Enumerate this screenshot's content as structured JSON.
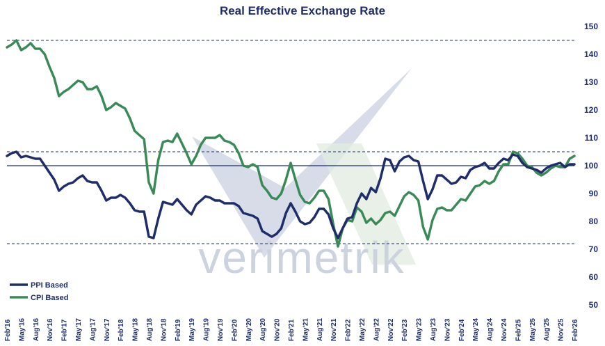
{
  "chart_data": {
    "type": "line",
    "title": "Real Effective Exchange Rate",
    "watermark": "verimetrik",
    "ylim": [
      50,
      150
    ],
    "yticks": [
      50,
      60,
      70,
      80,
      90,
      100,
      110,
      120,
      130,
      140,
      150
    ],
    "reference_lines": [
      {
        "value": 145,
        "style": "dashed"
      },
      {
        "value": 105,
        "style": "dashed"
      },
      {
        "value": 100,
        "style": "solid"
      },
      {
        "value": 72,
        "style": "dashed"
      }
    ],
    "xtick_labels": [
      "Feb'16",
      "May'16",
      "Aug'16",
      "Nov'16",
      "Feb'17",
      "May'17",
      "Aug'17",
      "Nov'17",
      "Feb'18",
      "May'18",
      "Aug'18",
      "Nov'18",
      "Feb'19",
      "May'19",
      "Aug'19",
      "Nov'19",
      "Feb'20",
      "May'20",
      "Aug'20",
      "Nov'20",
      "Feb'21",
      "May'21",
      "Aug'21",
      "Nov'21",
      "Feb'22",
      "May'22",
      "Aug'22",
      "Nov'22",
      "Feb'23",
      "May'23",
      "Aug'23",
      "Nov'23",
      "Feb'24",
      "May'24",
      "Aug'24",
      "Nov'24",
      "Feb'25",
      "May'25",
      "Aug'25",
      "Nov'25",
      "Feb'26"
    ],
    "start_month": "Feb'16",
    "legend": {
      "position": "bottom-left"
    },
    "colors": {
      "ppi": "#1f2d6b",
      "cpi": "#3a8a57",
      "axis_text": "#1f2d6b"
    },
    "series": [
      {
        "name": "PPI Based",
        "values": [
          103.5,
          104.5,
          105,
          103,
          103.5,
          103,
          102.5,
          102.5,
          100,
          97.5,
          95,
          91,
          92.5,
          93.5,
          94,
          95.5,
          96.5,
          94.5,
          94,
          94,
          91,
          87.5,
          88.5,
          88.5,
          89.5,
          88.5,
          86.5,
          84,
          83.5,
          83.5,
          74.5,
          74,
          81,
          87,
          86.5,
          86,
          88,
          86,
          84,
          82.5,
          86,
          87.5,
          89,
          88.5,
          87.5,
          87.5,
          86.5,
          86.5,
          86.5,
          85.5,
          83,
          82.5,
          82,
          81,
          76.5,
          75.5,
          74.5,
          75.5,
          77.5,
          83,
          86.5,
          83.5,
          80,
          79,
          79.5,
          81.5,
          84.5,
          84.5,
          82.5,
          77.5,
          74,
          77.5,
          81,
          81.5,
          86.5,
          90,
          88,
          92,
          90.5,
          95.5,
          102.5,
          102,
          98,
          101.5,
          103,
          103.5,
          102,
          101.5,
          94.5,
          88,
          91.5,
          96.5,
          96.5,
          95,
          93.5,
          94,
          96,
          95.5,
          98.5,
          99.5,
          100,
          101,
          99,
          99,
          101,
          102.5,
          102,
          104,
          103.5,
          101,
          99.5,
          99,
          98.5,
          97.5,
          99,
          100,
          100.5,
          101,
          99.5,
          100.5,
          100.5
        ]
      },
      {
        "name": "CPI Based",
        "values": [
          142.5,
          143.5,
          145,
          141.5,
          142.5,
          144,
          142,
          142,
          140,
          135.5,
          131.5,
          125,
          126.5,
          127.5,
          129,
          130.5,
          130,
          127.5,
          127.5,
          128.5,
          125,
          120,
          121,
          122.5,
          121.5,
          120.5,
          117,
          112.5,
          111,
          109.5,
          94,
          90,
          102,
          108.5,
          109,
          108.5,
          111.5,
          108,
          104.5,
          100.5,
          103.5,
          107.5,
          110,
          110,
          110,
          111,
          109,
          108.5,
          107.5,
          104.5,
          100,
          99.5,
          100.5,
          99.5,
          93,
          91,
          88.5,
          88,
          90,
          95,
          101,
          95,
          89.5,
          87,
          86.5,
          88.5,
          91,
          91,
          88,
          79,
          71,
          77.5,
          80.5,
          80,
          85,
          83.5,
          79.5,
          81,
          79,
          80.5,
          83,
          83.5,
          82,
          85.5,
          89,
          90.5,
          89.5,
          87.5,
          78,
          73.5,
          80.5,
          84.5,
          85,
          84,
          84,
          86,
          88,
          87.5,
          90,
          92.5,
          93,
          94.5,
          93.5,
          94.5,
          98,
          100.5,
          100.5,
          105,
          104.5,
          102.5,
          100,
          99.5,
          97.5,
          96.5,
          97.5,
          99,
          100,
          99.5,
          99.5,
          102.5,
          103.5
        ]
      }
    ]
  }
}
